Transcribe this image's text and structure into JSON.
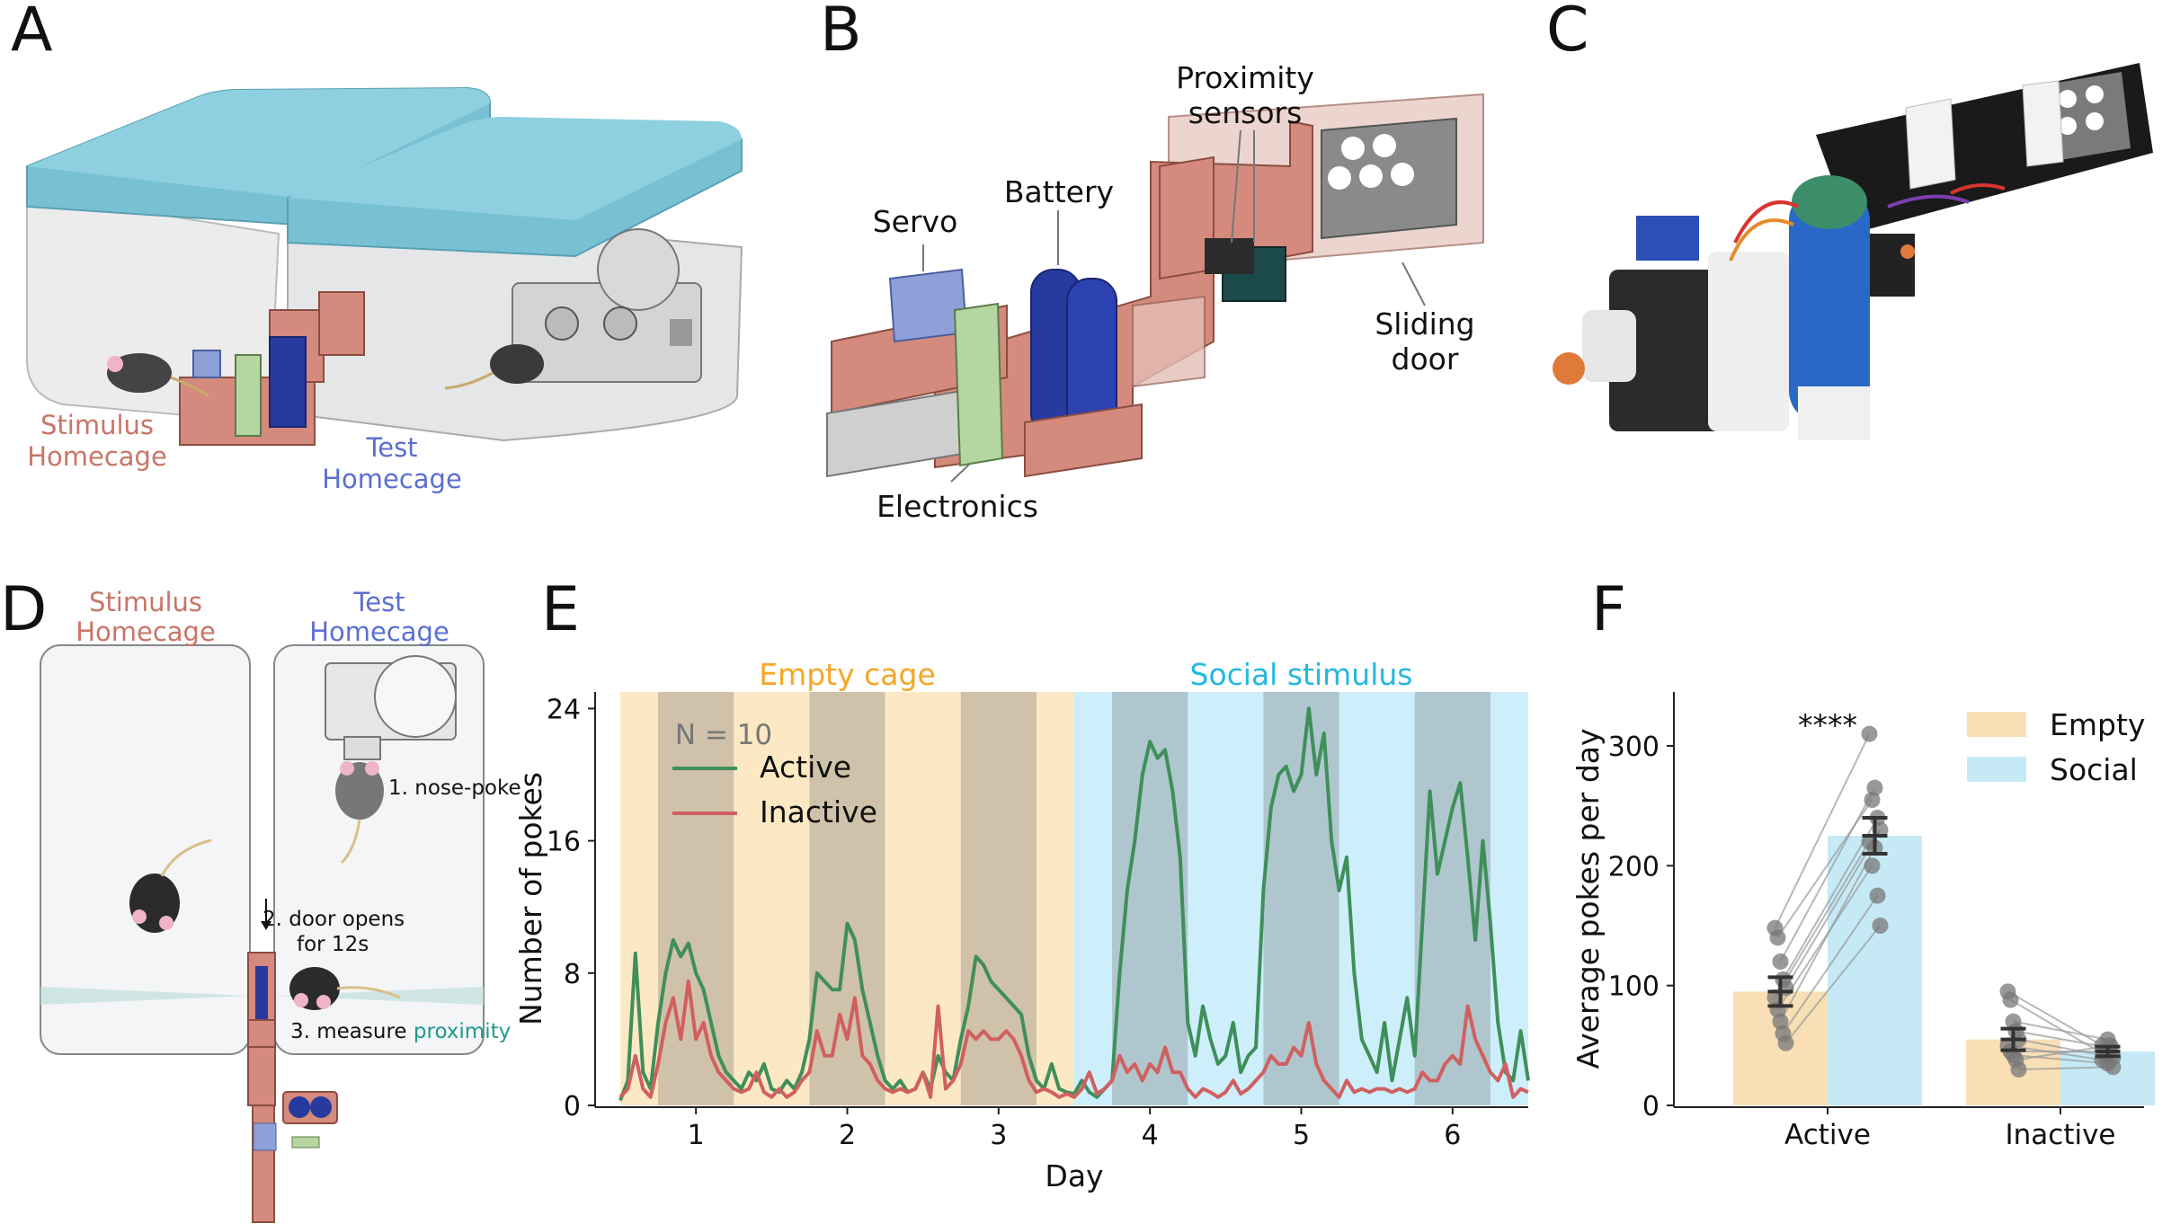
{
  "panels": {
    "A": {
      "letter": "A",
      "stimulus_label": [
        "Stimulus",
        "Homecage"
      ],
      "test_label": [
        "Test",
        "Homecage"
      ]
    },
    "B": {
      "letter": "B",
      "labels": {
        "proximity": [
          "Proximity",
          "sensors"
        ],
        "battery": "Battery",
        "servo": "Servo",
        "sliding": [
          "Sliding",
          "door"
        ],
        "electronics": "Electronics"
      }
    },
    "C": {
      "letter": "C"
    },
    "D": {
      "letter": "D",
      "stimulus_label": [
        "Stimulus",
        "Homecage"
      ],
      "test_label": [
        "Test",
        "Homecage"
      ],
      "step1": "1. nose-poke",
      "step2a": "2. door opens",
      "step2b": "for 12s",
      "step3_prefix": "3. measure ",
      "step3_highlight": "proximity"
    },
    "E": {
      "letter": "E"
    },
    "F": {
      "letter": "F"
    }
  },
  "colors": {
    "stimulus": "#c97566",
    "test": "#5b6fd1",
    "empty": "#f5a623",
    "social": "#22b8e0",
    "active": "#3f8f5a",
    "inactive": "#d0605f",
    "proximity": "#1e9a8c"
  },
  "chart_data": [
    {
      "panel": "E",
      "type": "line",
      "xlabel": "Day",
      "ylabel": "Number of pokes",
      "xlim": [
        0.5,
        6.5
      ],
      "ylim": [
        0,
        25
      ],
      "xticks": [
        1,
        2,
        3,
        4,
        5,
        6
      ],
      "yticks": [
        0,
        8,
        16,
        24
      ],
      "annotation": "N = 10",
      "phases": [
        {
          "label": "Empty cage",
          "start": 0.5,
          "end": 3.5,
          "color": "#fde8c4"
        },
        {
          "label": "Social stimulus",
          "start": 3.5,
          "end": 6.5,
          "color": "#cdeefb"
        }
      ],
      "dark_periods": [
        [
          0.75,
          1.25
        ],
        [
          1.75,
          2.25
        ],
        [
          2.75,
          3.25
        ],
        [
          3.75,
          4.25
        ],
        [
          4.75,
          5.25
        ],
        [
          5.75,
          6.25
        ]
      ],
      "series": [
        {
          "name": "Active",
          "color": "#3f8f5a",
          "x": [
            0.5,
            0.55,
            0.6,
            0.65,
            0.7,
            0.75,
            0.8,
            0.85,
            0.9,
            0.95,
            1.0,
            1.05,
            1.1,
            1.15,
            1.2,
            1.25,
            1.3,
            1.35,
            1.4,
            1.45,
            1.5,
            1.55,
            1.6,
            1.65,
            1.7,
            1.75,
            1.8,
            1.85,
            1.9,
            1.95,
            2.0,
            2.05,
            2.1,
            2.15,
            2.2,
            2.25,
            2.3,
            2.35,
            2.4,
            2.45,
            2.5,
            2.55,
            2.6,
            2.65,
            2.7,
            2.75,
            2.8,
            2.85,
            2.9,
            2.95,
            3.0,
            3.05,
            3.1,
            3.15,
            3.2,
            3.25,
            3.3,
            3.35,
            3.4,
            3.45,
            3.5,
            3.55,
            3.6,
            3.65,
            3.7,
            3.75,
            3.8,
            3.85,
            3.9,
            3.95,
            4.0,
            4.05,
            4.1,
            4.15,
            4.2,
            4.25,
            4.3,
            4.35,
            4.4,
            4.45,
            4.5,
            4.55,
            4.6,
            4.65,
            4.7,
            4.75,
            4.8,
            4.85,
            4.9,
            4.95,
            5.0,
            5.05,
            5.1,
            5.15,
            5.2,
            5.25,
            5.3,
            5.35,
            5.4,
            5.45,
            5.5,
            5.55,
            5.6,
            5.65,
            5.7,
            5.75,
            5.8,
            5.85,
            5.9,
            5.95,
            6.0,
            6.05,
            6.1,
            6.15,
            6.2,
            6.25,
            6.3,
            6.35,
            6.4,
            6.45,
            6.5
          ],
          "y": [
            0.3,
            1.5,
            9.2,
            2.0,
            1.0,
            5.0,
            8.0,
            10.0,
            9.0,
            9.8,
            8.0,
            7.0,
            5.0,
            3.0,
            2.0,
            1.5,
            1.0,
            2.0,
            1.5,
            2.5,
            1.0,
            0.8,
            1.5,
            1.0,
            2.0,
            4.0,
            8.0,
            7.5,
            7.0,
            7.0,
            11.0,
            10.0,
            7.0,
            5.0,
            3.0,
            1.5,
            1.0,
            1.5,
            0.8,
            1.0,
            2.0,
            1.0,
            3.0,
            2.0,
            1.5,
            4.0,
            6.0,
            9.0,
            8.5,
            7.5,
            7.0,
            6.5,
            6.0,
            5.5,
            3.0,
            1.5,
            1.0,
            2.5,
            1.0,
            0.8,
            0.7,
            1.5,
            0.8,
            0.5,
            1.0,
            1.5,
            8.0,
            13.0,
            16.0,
            20.0,
            22.0,
            21.0,
            21.5,
            19.0,
            15.0,
            5.0,
            3.0,
            6.0,
            4.0,
            2.5,
            3.0,
            5.0,
            2.0,
            3.0,
            3.5,
            13.0,
            18.0,
            20.0,
            20.5,
            19.0,
            20.0,
            24.0,
            20.0,
            22.5,
            16.0,
            13.0,
            15.0,
            8.0,
            4.0,
            3.0,
            2.0,
            5.0,
            1.5,
            4.0,
            6.5,
            3.0,
            11.0,
            19.0,
            14.0,
            16.0,
            18.0,
            19.5,
            15.0,
            10.0,
            16.0,
            11.0,
            5.0,
            2.0,
            1.5,
            4.5,
            1.5
          ]
        },
        {
          "name": "Inactive",
          "color": "#d0605f",
          "x": [
            0.5,
            0.55,
            0.6,
            0.65,
            0.7,
            0.75,
            0.8,
            0.85,
            0.9,
            0.95,
            1.0,
            1.05,
            1.1,
            1.15,
            1.2,
            1.25,
            1.3,
            1.35,
            1.4,
            1.45,
            1.5,
            1.55,
            1.6,
            1.65,
            1.7,
            1.75,
            1.8,
            1.85,
            1.9,
            1.95,
            2.0,
            2.05,
            2.1,
            2.15,
            2.2,
            2.25,
            2.3,
            2.35,
            2.4,
            2.45,
            2.5,
            2.55,
            2.6,
            2.65,
            2.7,
            2.75,
            2.8,
            2.85,
            2.9,
            2.95,
            3.0,
            3.05,
            3.1,
            3.15,
            3.2,
            3.25,
            3.3,
            3.35,
            3.4,
            3.45,
            3.5,
            3.55,
            3.6,
            3.65,
            3.7,
            3.75,
            3.8,
            3.85,
            3.9,
            3.95,
            4.0,
            4.05,
            4.1,
            4.15,
            4.2,
            4.25,
            4.3,
            4.35,
            4.4,
            4.45,
            4.5,
            4.55,
            4.6,
            4.65,
            4.7,
            4.75,
            4.8,
            4.85,
            4.9,
            4.95,
            5.0,
            5.05,
            5.1,
            5.15,
            5.2,
            5.25,
            5.3,
            5.35,
            5.4,
            5.45,
            5.5,
            5.55,
            5.6,
            5.65,
            5.7,
            5.75,
            5.8,
            5.85,
            5.9,
            5.95,
            6.0,
            6.05,
            6.1,
            6.15,
            6.2,
            6.25,
            6.3,
            6.35,
            6.4,
            6.45,
            6.5
          ],
          "y": [
            0.5,
            1.0,
            3.0,
            1.0,
            0.5,
            2.5,
            5.0,
            6.5,
            4.0,
            7.5,
            4.0,
            5.0,
            3.0,
            2.0,
            1.5,
            1.0,
            0.8,
            1.0,
            2.0,
            0.8,
            0.5,
            1.0,
            0.5,
            0.8,
            1.5,
            2.0,
            4.5,
            3.0,
            3.0,
            5.5,
            4.0,
            6.5,
            3.0,
            2.5,
            1.5,
            1.0,
            0.8,
            1.0,
            0.8,
            1.0,
            2.0,
            0.5,
            6.0,
            1.0,
            1.5,
            2.5,
            4.5,
            4.0,
            4.5,
            4.0,
            4.0,
            4.5,
            4.0,
            3.0,
            1.5,
            0.8,
            1.0,
            0.8,
            0.5,
            0.7,
            0.5,
            1.0,
            2.0,
            0.7,
            1.0,
            1.5,
            3.0,
            2.0,
            2.5,
            1.5,
            2.5,
            2.0,
            3.5,
            2.0,
            2.0,
            1.0,
            0.5,
            1.0,
            0.8,
            0.5,
            0.8,
            1.5,
            0.7,
            1.0,
            1.5,
            2.0,
            3.0,
            2.5,
            2.5,
            3.5,
            3.0,
            5.0,
            2.5,
            1.5,
            1.0,
            0.5,
            1.5,
            0.8,
            1.0,
            0.8,
            1.0,
            1.0,
            0.8,
            1.0,
            0.8,
            1.0,
            2.0,
            1.5,
            1.5,
            2.5,
            3.0,
            2.5,
            6.0,
            4.0,
            3.0,
            2.0,
            1.5,
            2.5,
            0.5,
            1.0,
            0.8
          ]
        }
      ]
    },
    {
      "panel": "F",
      "type": "bar",
      "ylabel": "Average pokes per day",
      "ylim": [
        0,
        345
      ],
      "yticks": [
        0,
        100,
        200,
        300
      ],
      "categories": [
        "Active",
        "Inactive"
      ],
      "significance": "****",
      "series": [
        {
          "name": "Empty",
          "color": "#f8dfb6",
          "values": [
            95,
            55
          ],
          "sem": [
            12,
            9
          ]
        },
        {
          "name": "Social",
          "color": "#c5eaf6",
          "values": [
            225,
            45
          ],
          "sem": [
            15,
            4
          ]
        }
      ],
      "paired_points": {
        "Active": [
          [
            148,
            310
          ],
          [
            140,
            255
          ],
          [
            120,
            265
          ],
          [
            105,
            240
          ],
          [
            98,
            230
          ],
          [
            90,
            220
          ],
          [
            80,
            200
          ],
          [
            70,
            215
          ],
          [
            60,
            175
          ],
          [
            52,
            150
          ]
        ],
        "Inactive": [
          [
            95,
            50
          ],
          [
            88,
            42
          ],
          [
            70,
            55
          ],
          [
            62,
            48
          ],
          [
            55,
            40
          ],
          [
            50,
            38
          ],
          [
            45,
            45
          ],
          [
            42,
            35
          ],
          [
            38,
            50
          ],
          [
            30,
            32
          ]
        ]
      }
    }
  ]
}
